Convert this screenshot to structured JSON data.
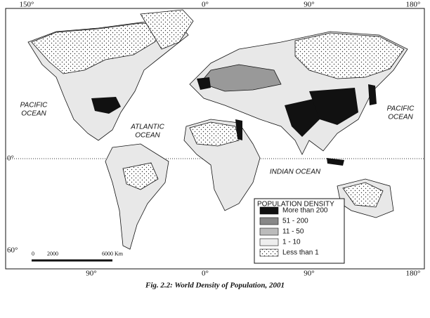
{
  "map": {
    "top_labels": [
      "150°",
      "0°",
      "90°",
      "180°"
    ],
    "left_labels": [
      "0°",
      "60°"
    ],
    "bottom_labels": [
      "90°",
      "0°",
      "90°",
      "180°"
    ],
    "oceans": [
      {
        "lines": [
          "PACIFIC",
          "OCEAN"
        ]
      },
      {
        "lines": [
          "ATLANTIC",
          "OCEAN"
        ]
      },
      {
        "lines": [
          "INDIAN OCEAN"
        ]
      },
      {
        "lines": [
          "PACIFIC",
          "OCEAN"
        ]
      }
    ],
    "legend": {
      "title": "POPULATION DENSITY",
      "items": [
        "More than 200",
        "51 - 200",
        "11 - 50",
        "1 - 10",
        "Less than 1"
      ]
    },
    "scale": {
      "labels": [
        "0",
        "2000",
        "6000 Km"
      ]
    }
  },
  "caption": "Fig. 2.2: World Density of Population, 2001"
}
